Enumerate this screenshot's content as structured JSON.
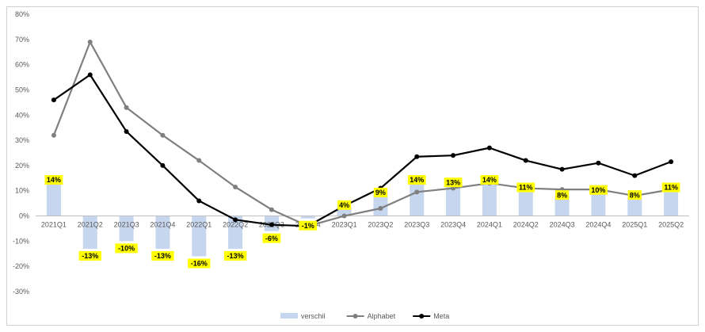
{
  "chart_data": {
    "type": "bar",
    "categories": [
      "2021Q1",
      "2021Q2",
      "2021Q3",
      "2021Q4",
      "2022Q1",
      "2022Q2",
      "2022Q3",
      "2022Q4",
      "2023Q1",
      "2023Q2",
      "2023Q3",
      "2023Q4",
      "2024Q1",
      "2024Q2",
      "2024Q3",
      "2024Q4",
      "2025Q1",
      "2025Q2"
    ],
    "series": [
      {
        "name": "verschil",
        "type": "bar",
        "color": "#c6d6ee",
        "values": [
          14,
          -13,
          -10,
          -13,
          -16,
          -13,
          -6,
          -1,
          4,
          9,
          14,
          13,
          14,
          11,
          8,
          10,
          8,
          11
        ],
        "labels": [
          "14%",
          "-13%",
          "-10%",
          "-13%",
          "-16%",
          "-13%",
          "-6%",
          "-1%",
          "4%",
          "9%",
          "14%",
          "13%",
          "14%",
          "11%",
          "8%",
          "10%",
          "8%",
          "11%"
        ]
      },
      {
        "name": "Alphabet",
        "type": "line",
        "color": "#7f7f7f",
        "values": [
          32,
          69,
          43,
          32,
          22,
          11.5,
          2.5,
          -4,
          0,
          3,
          9.5,
          11,
          13,
          11,
          10.5,
          10.5,
          8,
          10.5
        ]
      },
      {
        "name": "Meta",
        "type": "line",
        "color": "#000000",
        "values": [
          46,
          56,
          33.5,
          20,
          6,
          -1.5,
          -3.5,
          -4,
          4,
          11,
          23.5,
          24,
          27,
          22,
          18.5,
          21,
          16,
          21.5
        ]
      }
    ],
    "yticks": [
      "80%",
      "70%",
      "60%",
      "50%",
      "40%",
      "30%",
      "20%",
      "10%",
      "0%",
      "-10%",
      "-20%",
      "-30%"
    ],
    "ylim": [
      -30,
      80
    ],
    "label_highlight": "#ffff00",
    "legend": "bottom-center",
    "grid": false
  }
}
